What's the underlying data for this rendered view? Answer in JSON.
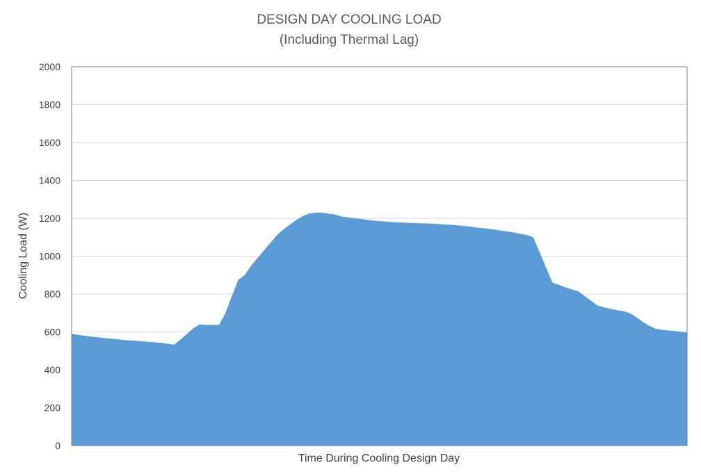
{
  "chart_data": {
    "type": "area",
    "title": "DESIGN DAY COOLING LOAD",
    "subtitle": "(Including Thermal Lag)",
    "xlabel": "Time During Cooling Design Day",
    "ylabel": "Cooling Load  (W)",
    "ylim": [
      0,
      2000
    ],
    "yticks": [
      "0",
      "200",
      "400",
      "600",
      "800",
      "1000",
      "1200",
      "1400",
      "1600",
      "1800",
      "2000"
    ],
    "grid": true,
    "legend": "none",
    "color": "#5B9BD5",
    "x": [
      0,
      1,
      2,
      3,
      4,
      5,
      6,
      7,
      8,
      9,
      10,
      11,
      12,
      13,
      14,
      15,
      16,
      17,
      18,
      19,
      20,
      21,
      22,
      23,
      24,
      25,
      26,
      27,
      28,
      29,
      30,
      31,
      32,
      33,
      34,
      35,
      36,
      37,
      38,
      39,
      40,
      41,
      42,
      43,
      44,
      45,
      46,
      47,
      48,
      49,
      50,
      51,
      52,
      53,
      54,
      55,
      56,
      57,
      58,
      59,
      60,
      61,
      62,
      63,
      64,
      65,
      66,
      67,
      68,
      69,
      70,
      71,
      72,
      73,
      74,
      75,
      76,
      77,
      78,
      79,
      80,
      81,
      82,
      83,
      84,
      85,
      86,
      87,
      88,
      89,
      90,
      91,
      92,
      93,
      94,
      95,
      96
    ],
    "values": [
      590,
      585,
      580,
      575,
      572,
      568,
      565,
      562,
      558,
      555,
      553,
      550,
      548,
      545,
      542,
      537,
      533,
      560,
      590,
      620,
      640,
      637,
      637,
      637,
      700,
      790,
      875,
      900,
      950,
      990,
      1030,
      1070,
      1110,
      1140,
      1165,
      1190,
      1210,
      1225,
      1230,
      1230,
      1225,
      1220,
      1210,
      1205,
      1200,
      1197,
      1192,
      1188,
      1185,
      1183,
      1180,
      1178,
      1177,
      1175,
      1174,
      1173,
      1172,
      1170,
      1168,
      1166,
      1163,
      1160,
      1157,
      1152,
      1148,
      1145,
      1140,
      1135,
      1130,
      1125,
      1118,
      1112,
      1100,
      1020,
      940,
      860,
      848,
      835,
      825,
      815,
      790,
      765,
      740,
      730,
      722,
      715,
      710,
      700,
      680,
      655,
      635,
      618,
      612,
      608,
      605,
      600,
      597
    ]
  }
}
